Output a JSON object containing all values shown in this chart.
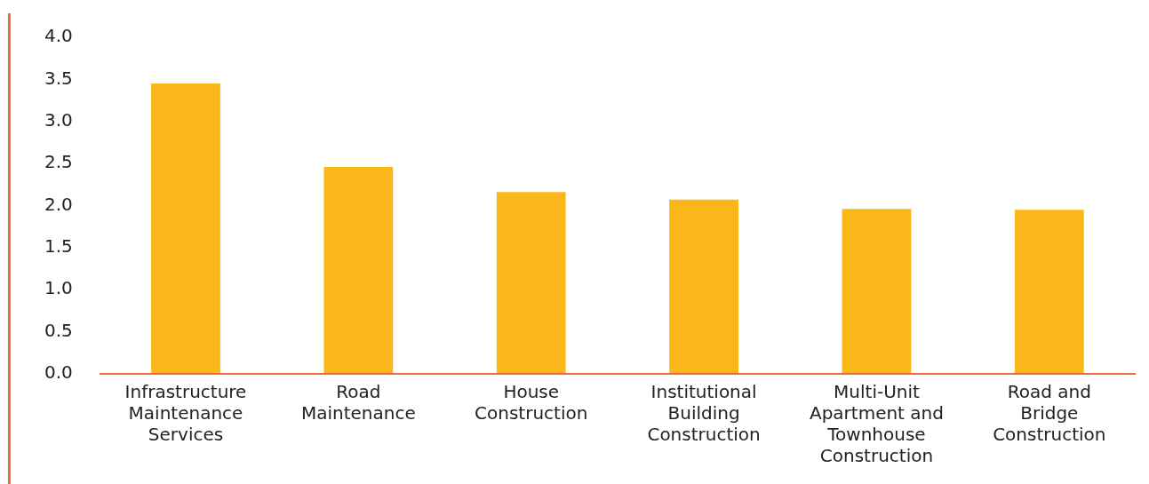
{
  "chart_data": {
    "type": "bar",
    "categories": [
      "Infrastructure Maintenance Services",
      "Road Maintenance",
      "House Construction",
      "Institutional Building Construction",
      "Multi-Unit Apartment and Townhouse Construction",
      "Road and Bridge Construction"
    ],
    "values": [
      3.45,
      2.46,
      2.16,
      2.07,
      1.96,
      1.95
    ],
    "color": "#fbb619",
    "ylim": [
      0,
      4
    ],
    "yticks": [
      {
        "value": 0,
        "label": "0.0"
      },
      {
        "value": 0.5,
        "label": "0.5"
      },
      {
        "value": 1,
        "label": "1.0"
      },
      {
        "value": 1.5,
        "label": "1.5"
      },
      {
        "value": 2,
        "label": "2.0"
      },
      {
        "value": 2.5,
        "label": "2.5"
      },
      {
        "value": 3,
        "label": "3.0"
      },
      {
        "value": 3.5,
        "label": "3.5"
      },
      {
        "value": 4,
        "label": "4.0"
      }
    ],
    "grid": false,
    "legend": false
  }
}
